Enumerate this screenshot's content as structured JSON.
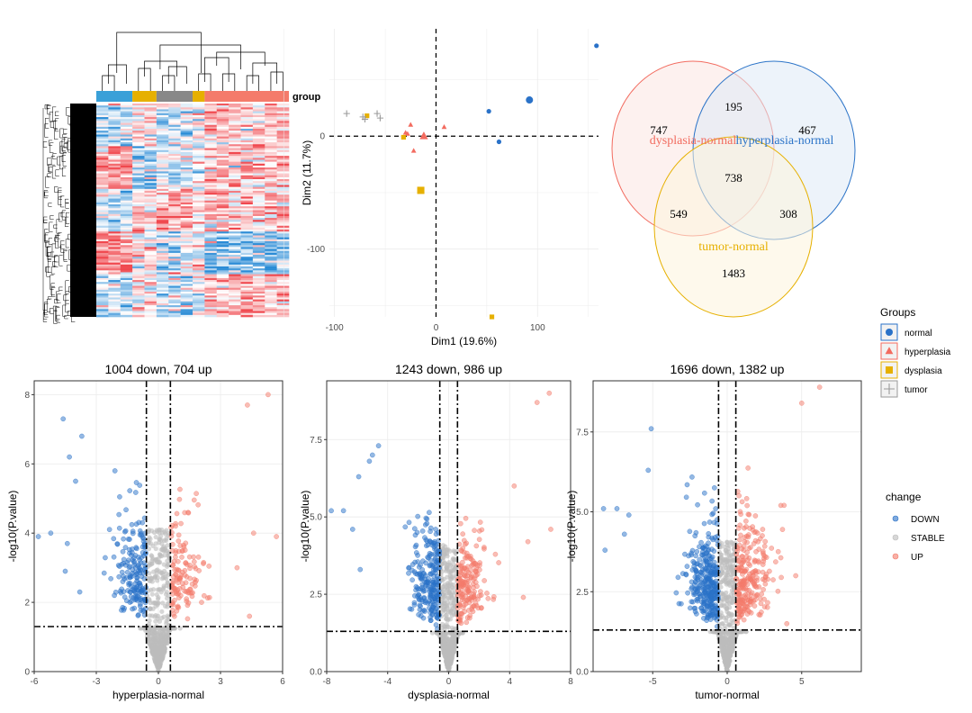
{
  "chart_data": [
    {
      "type": "heatmap",
      "annotation_title": "group",
      "annotation_groups": [
        "normal",
        "hyperplasia",
        "dysplasia",
        "tumor"
      ],
      "annotation_colors": [
        "#3aa0d8",
        "#e6b000",
        "#888888",
        "#e6b000",
        "#f47b6b"
      ],
      "low_color": "#2b8cd6",
      "mid_color": "#ffffff",
      "high_color": "#f0484e",
      "n_rows": "approx 1500",
      "n_columns": 16
    },
    {
      "type": "scatter",
      "xlabel": "Dim1 (19.6%)",
      "ylabel": "Dim2 (11.7%)",
      "xlim": [
        -105,
        160
      ],
      "ylim": [
        -160,
        95
      ],
      "xticks": [
        -100,
        0,
        100
      ],
      "yticks": [
        -100,
        0
      ],
      "reference_lines": {
        "x": 0,
        "y": 0,
        "style": "dashed"
      },
      "series": [
        {
          "name": "normal",
          "color": "#2a72c8",
          "shape": "circle",
          "points": [
            [
              92,
              32
            ],
            [
              52,
              22
            ],
            [
              62,
              -5
            ],
            [
              158,
              80
            ]
          ]
        },
        {
          "name": "hyperplasia",
          "color": "#f36b5f",
          "shape": "triangle",
          "points": [
            [
              -12,
              0
            ],
            [
              -25,
              10
            ],
            [
              -22,
              -13
            ],
            [
              8,
              8
            ],
            [
              -30,
              3
            ],
            [
              -28,
              2
            ]
          ]
        },
        {
          "name": "dysplasia",
          "color": "#e6b000",
          "shape": "square",
          "points": [
            [
              -15,
              -48
            ],
            [
              -32,
              -1
            ],
            [
              -68,
              18
            ],
            [
              55,
              -160
            ]
          ]
        },
        {
          "name": "tumor",
          "color": "#9a9a9a",
          "shape": "cross",
          "points": [
            [
              -88,
              20
            ],
            [
              -70,
              15
            ],
            [
              -55,
              16
            ],
            [
              -58,
              20
            ],
            [
              -72,
              17
            ]
          ]
        }
      ]
    },
    {
      "type": "venn",
      "sets": [
        {
          "name": "dysplasia-normal",
          "color": "#f26b5f",
          "fill": "#fbe6e2"
        },
        {
          "name": "hyperplasia-normal",
          "color": "#2c74c8",
          "fill": "#dfe9f6"
        },
        {
          "name": "tumor-normal",
          "color": "#e6b000",
          "fill": "#fdf4dc"
        }
      ],
      "regions": {
        "dysplasia_only": 747,
        "hyperplasia_only": 467,
        "tumor_only": 1483,
        "dysplasia_hyperplasia": 195,
        "dysplasia_tumor": 549,
        "hyperplasia_tumor": 308,
        "all_three": 738
      }
    },
    {
      "type": "scatter",
      "title": "1004 down, 704 up",
      "xlabel": "hyperplasia-normal",
      "ylabel": "-log10(P.value)",
      "xlim": [
        -6,
        6
      ],
      "ylim": [
        0,
        8.4
      ],
      "xticks": [
        -6,
        -3,
        0,
        3,
        6
      ],
      "yticks": [
        0,
        2,
        4,
        6,
        8
      ],
      "logfc_cut": 0.58,
      "p_cut": 1.3,
      "down": 1004,
      "up": 704,
      "scatter_spread": 0.85,
      "notable_points": [
        [
          -4.6,
          7.3
        ],
        [
          -3.7,
          6.8
        ],
        [
          -4.3,
          6.2
        ],
        [
          -4.0,
          5.5
        ],
        [
          -2.1,
          5.8
        ],
        [
          -5.2,
          4.0
        ],
        [
          -4.4,
          3.7
        ],
        [
          -5.8,
          3.9
        ],
        [
          -3.8,
          2.3
        ],
        [
          -4.5,
          2.9
        ],
        [
          4.3,
          7.7
        ],
        [
          5.3,
          8.0
        ],
        [
          5.7,
          3.9
        ],
        [
          4.6,
          4.0
        ],
        [
          4.4,
          1.6
        ],
        [
          3.8,
          3.0
        ]
      ]
    },
    {
      "type": "scatter",
      "title": "1243 down, 986 up",
      "xlabel": "dysplasia-normal",
      "ylabel": "-log10(P.value)",
      "xlim": [
        -8,
        8
      ],
      "ylim": [
        0,
        9.4
      ],
      "xticks": [
        -8,
        -4,
        0,
        4,
        8
      ],
      "yticks": [
        0.0,
        2.5,
        5.0,
        7.5
      ],
      "logfc_cut": 0.58,
      "p_cut": 1.3,
      "down": 1243,
      "up": 986,
      "scatter_spread": 1.0,
      "notable_points": [
        [
          -4.6,
          7.3
        ],
        [
          -5.0,
          7.0
        ],
        [
          -5.2,
          6.8
        ],
        [
          -5.9,
          6.3
        ],
        [
          -6.9,
          5.2
        ],
        [
          -7.7,
          5.2
        ],
        [
          -6.3,
          4.6
        ],
        [
          -5.8,
          3.3
        ],
        [
          5.8,
          8.7
        ],
        [
          6.6,
          9.0
        ],
        [
          6.7,
          4.6
        ],
        [
          4.3,
          6.0
        ],
        [
          5.2,
          4.2
        ],
        [
          4.9,
          2.4
        ]
      ]
    },
    {
      "type": "scatter",
      "title": "1696 down, 1382 up",
      "xlabel": "tumor-normal",
      "ylabel": "-log10(P.value)",
      "xlim": [
        -9,
        9
      ],
      "ylim": [
        0,
        9.1
      ],
      "xticks": [
        -5,
        0,
        5
      ],
      "yticks": [
        0.0,
        2.5,
        5.0,
        7.5
      ],
      "logfc_cut": 0.58,
      "p_cut": 1.3,
      "down": 1696,
      "up": 1382,
      "scatter_spread": 1.15,
      "notable_points": [
        [
          -5.1,
          7.6
        ],
        [
          -8.3,
          5.1
        ],
        [
          -7.4,
          5.1
        ],
        [
          -6.6,
          4.9
        ],
        [
          -8.2,
          3.8
        ],
        [
          -6.9,
          4.3
        ],
        [
          -5.3,
          6.3
        ],
        [
          6.2,
          8.9
        ],
        [
          5.0,
          8.4
        ],
        [
          3.6,
          5.2
        ],
        [
          4.6,
          3.0
        ],
        [
          4.0,
          1.5
        ]
      ]
    }
  ],
  "legends": {
    "groups_title": "Groups",
    "groups": [
      {
        "label": "normal",
        "color": "#2a72c8",
        "shape": "circle"
      },
      {
        "label": "hyperplasia",
        "color": "#f36b5f",
        "shape": "triangle"
      },
      {
        "label": "dysplasia",
        "color": "#e6b000",
        "shape": "square"
      },
      {
        "label": "tumor",
        "color": "#9a9a9a",
        "shape": "cross"
      }
    ],
    "change_title": "change",
    "change": [
      {
        "label": "DOWN",
        "color": "#2a72c8"
      },
      {
        "label": "STABLE",
        "color": "#bdbdbd"
      },
      {
        "label": "UP",
        "color": "#f47b6b"
      }
    ]
  }
}
